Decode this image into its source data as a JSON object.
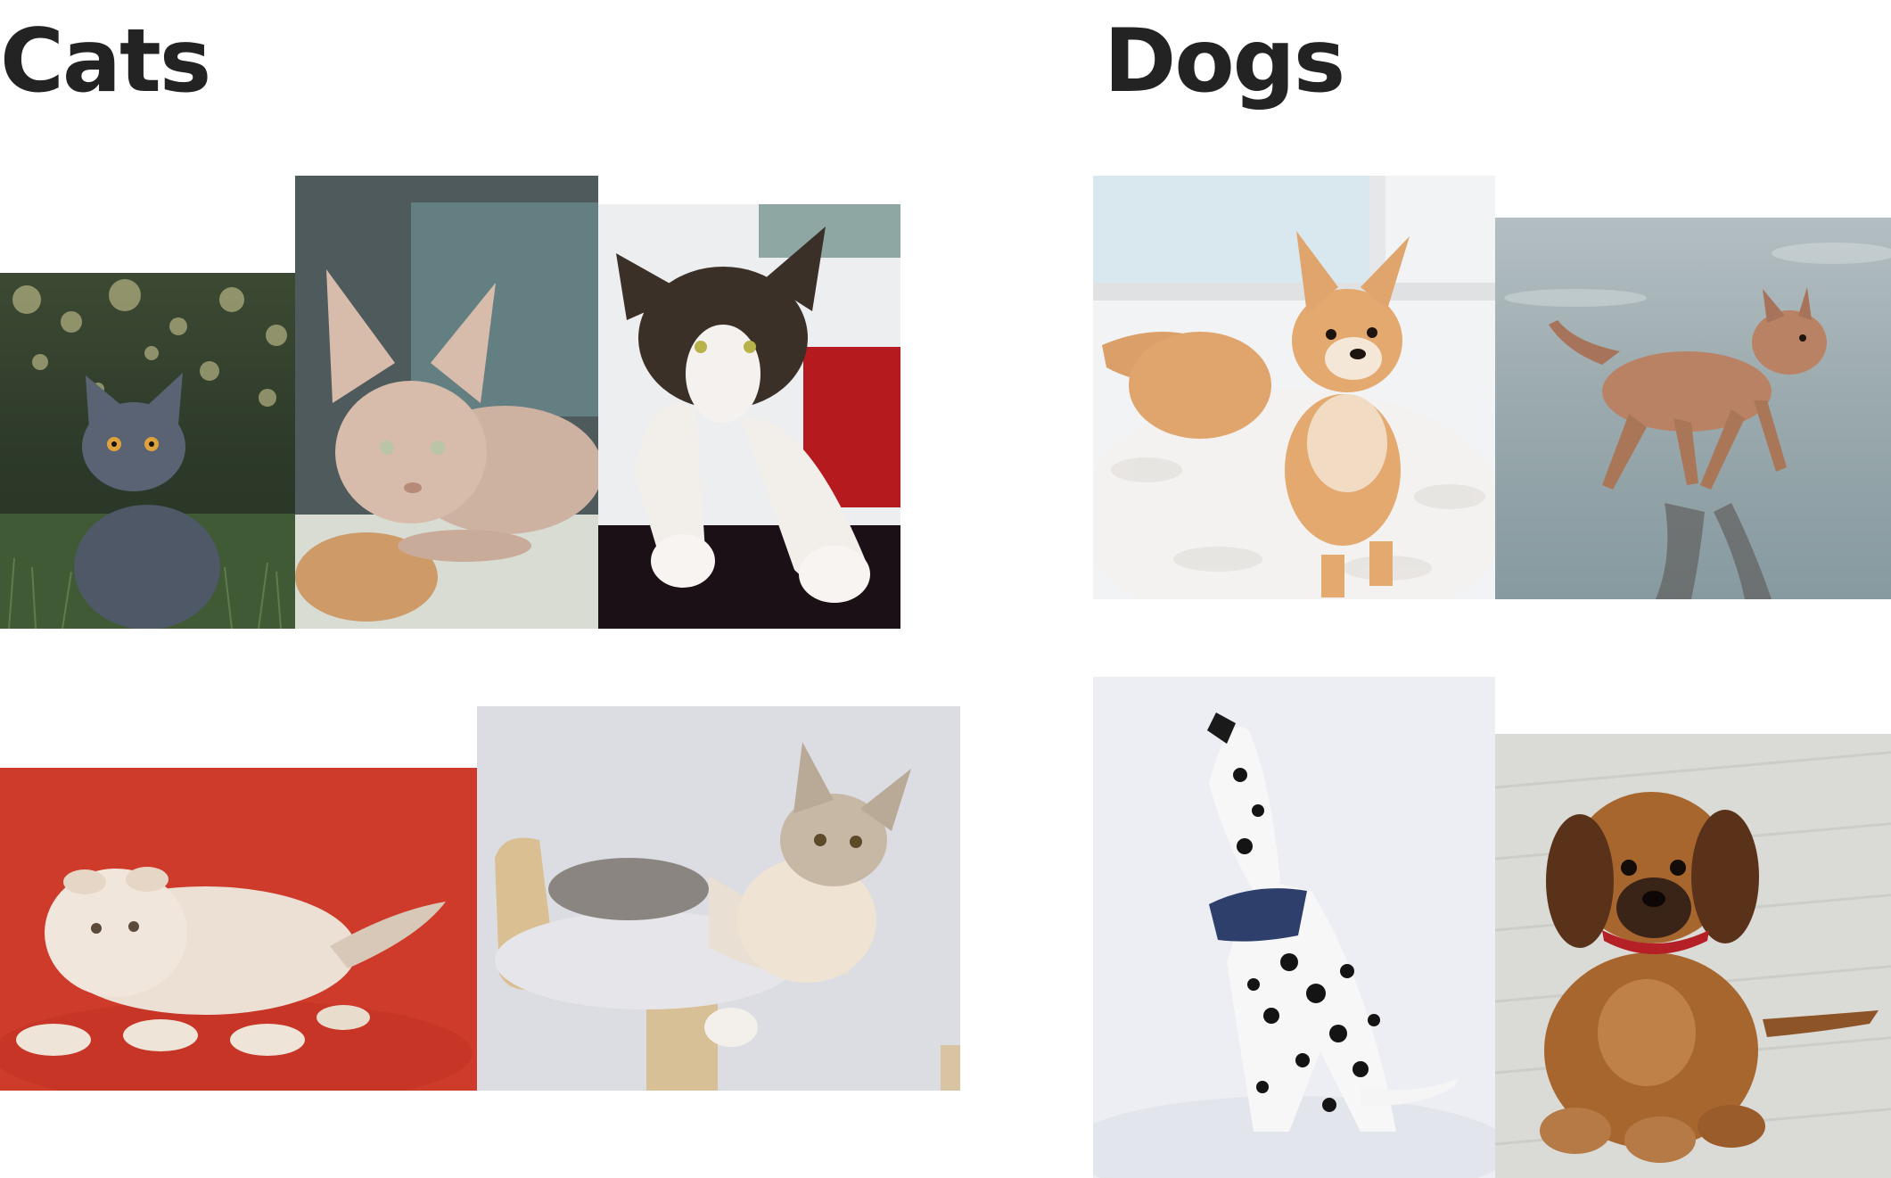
{
  "sections": {
    "cats": {
      "heading": "Cats"
    },
    "dogs": {
      "heading": "Dogs"
    }
  }
}
